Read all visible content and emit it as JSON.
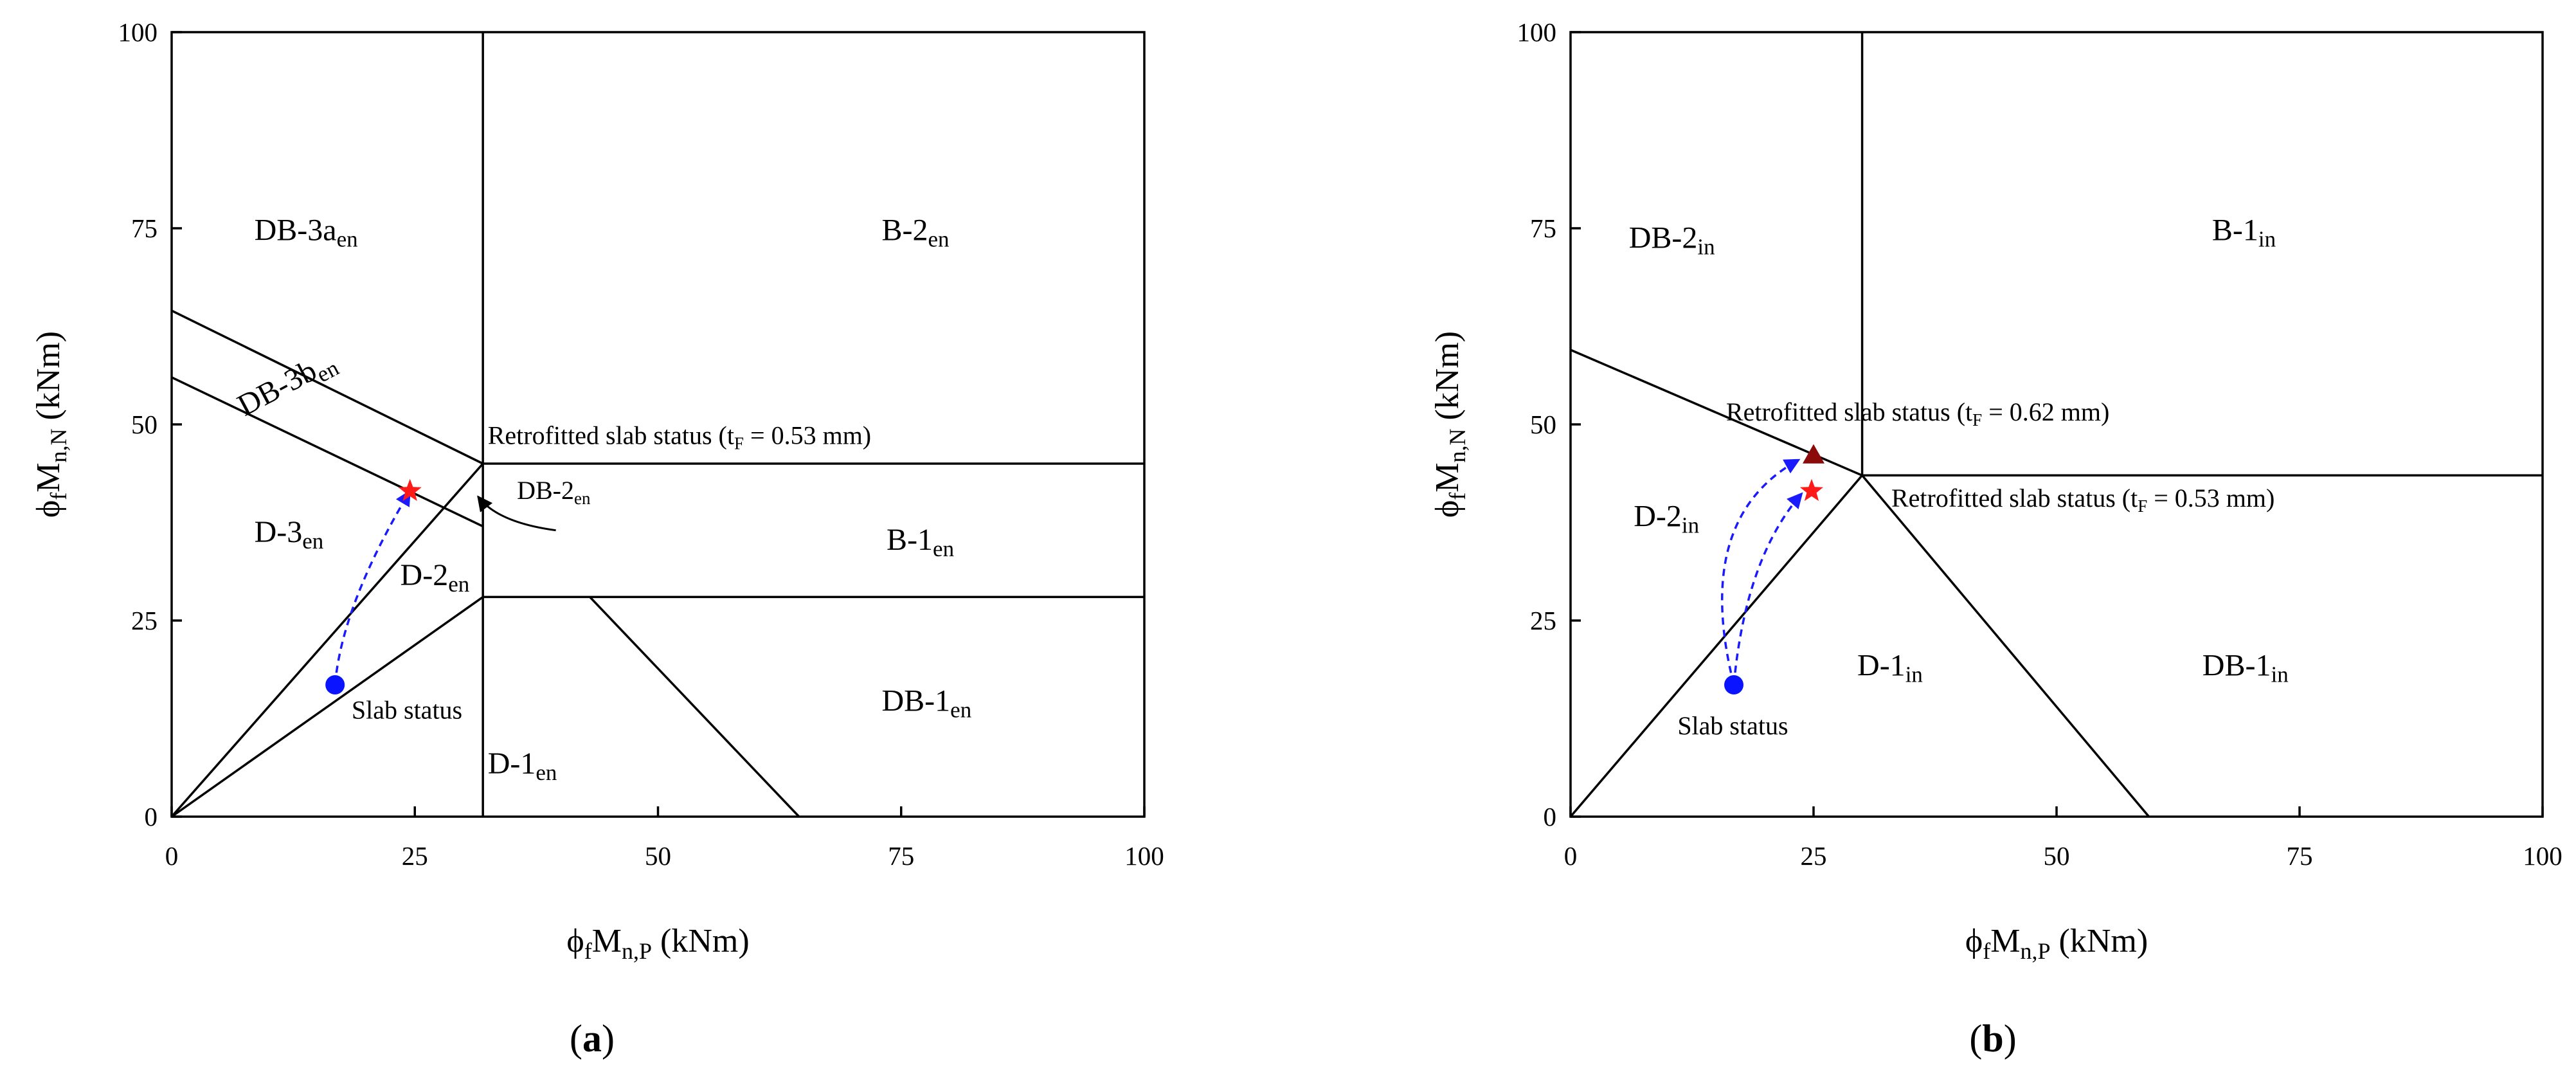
{
  "chart_data": [
    {
      "type": "scatter",
      "panel_label": "a",
      "xlim": [
        0,
        100
      ],
      "ylim": [
        0,
        100
      ],
      "xticks": [
        0,
        25,
        50,
        75,
        100
      ],
      "yticks": [
        0,
        25,
        50,
        75,
        100
      ],
      "xlabel": {
        "pre": "ϕ",
        "s1": "f",
        "main": "M",
        "s2": "n,P",
        "post": " (kNm)"
      },
      "ylabel": {
        "pre": "ϕ",
        "s1": "f",
        "main": "M",
        "s2": "n,N",
        "post": " (kNm)"
      },
      "boundaries": [
        [
          [
            32,
            0
          ],
          [
            32,
            100
          ]
        ],
        [
          [
            0,
            64.5
          ],
          [
            32,
            45
          ]
        ],
        [
          [
            0,
            56
          ],
          [
            32,
            37
          ]
        ],
        [
          [
            32,
            45
          ],
          [
            100,
            45
          ]
        ],
        [
          [
            32,
            28
          ],
          [
            100,
            28
          ]
        ],
        [
          [
            0,
            0
          ],
          [
            32,
            45
          ]
        ],
        [
          [
            0,
            0
          ],
          [
            32,
            28
          ]
        ],
        [
          [
            43,
            28
          ],
          [
            64.5,
            0
          ]
        ]
      ],
      "regions": [
        {
          "main": "DB-3a",
          "sub": "en",
          "x": 8.5,
          "y": 73.5,
          "angle": 0
        },
        {
          "main": "B-2",
          "sub": "en",
          "x": 73,
          "y": 73.5,
          "angle": 0
        },
        {
          "main": "DB-3b",
          "sub": "en",
          "x": 7.5,
          "y": 51,
          "angle": -28
        },
        {
          "main": "D-3",
          "sub": "en",
          "x": 8.5,
          "y": 35,
          "angle": 0
        },
        {
          "main": "D-2",
          "sub": "en",
          "x": 23.5,
          "y": 29.5,
          "angle": 0
        },
        {
          "main": "B-1",
          "sub": "en",
          "x": 73.5,
          "y": 34,
          "angle": 0
        },
        {
          "main": "DB-1",
          "sub": "en",
          "x": 73,
          "y": 13.5,
          "angle": 0
        },
        {
          "main": "D-1",
          "sub": "en",
          "x": 32.5,
          "y": 5.5,
          "angle": 0
        }
      ],
      "annotations": [
        {
          "pre": "Retrofitted slab status (t",
          "sub": "F",
          "post": " = 0.53 mm)",
          "x": 32.5,
          "y": 47.5
        },
        {
          "pre": "DB-2",
          "sub": "en",
          "post": "",
          "x": 35.5,
          "y": 40.5
        },
        {
          "pre": "Slab status",
          "sub": "",
          "post": "",
          "x": 18.5,
          "y": 12.5
        }
      ],
      "points": [
        {
          "marker": "circle",
          "color": "#0a14ff",
          "x": 16.8,
          "y": 16.8
        },
        {
          "marker": "star",
          "color": "#ff1a1a",
          "x": 24.5,
          "y": 41.5
        }
      ],
      "paths": [
        {
          "from": [
            16.8,
            16.8
          ],
          "to": [
            24.5,
            41.5
          ],
          "control": [
            17.5,
            27
          ]
        }
      ],
      "pointer": {
        "start": [
          39.5,
          36.5
        ],
        "control": [
          33.5,
          37.5
        ],
        "end": [
          31.5,
          40.8
        ]
      }
    },
    {
      "type": "scatter",
      "panel_label": "b",
      "xlim": [
        0,
        100
      ],
      "ylim": [
        0,
        100
      ],
      "xticks": [
        0,
        25,
        50,
        75,
        100
      ],
      "yticks": [
        0,
        25,
        50,
        75,
        100
      ],
      "xlabel": {
        "pre": "ϕ",
        "s1": "f",
        "main": "M",
        "s2": "n,P",
        "post": " (kNm)"
      },
      "ylabel": {
        "pre": "ϕ",
        "s1": "f",
        "main": "M",
        "s2": "n,N",
        "post": " (kNm)"
      },
      "boundaries": [
        [
          [
            30,
            43.5
          ],
          [
            30,
            100
          ]
        ],
        [
          [
            0,
            59.5
          ],
          [
            30,
            43.5
          ]
        ],
        [
          [
            30,
            43.5
          ],
          [
            100,
            43.5
          ]
        ],
        [
          [
            0,
            0
          ],
          [
            30,
            43.5
          ]
        ],
        [
          [
            30,
            43.5
          ],
          [
            59.5,
            0
          ]
        ]
      ],
      "regions": [
        {
          "main": "DB-2",
          "sub": "in",
          "x": 6,
          "y": 72.5,
          "angle": 0
        },
        {
          "main": "B-1",
          "sub": "in",
          "x": 66,
          "y": 73.5,
          "angle": 0
        },
        {
          "main": "D-2",
          "sub": "in",
          "x": 6.5,
          "y": 37,
          "angle": 0
        },
        {
          "main": "D-1",
          "sub": "in",
          "x": 29.5,
          "y": 18,
          "angle": 0
        },
        {
          "main": "DB-1",
          "sub": "in",
          "x": 65,
          "y": 18,
          "angle": 0
        }
      ],
      "annotations": [
        {
          "pre": "Retrofitted slab status (t",
          "sub": "F",
          "post": " = 0.62 mm)",
          "x": 16,
          "y": 50.5
        },
        {
          "pre": "Retrofitted slab status (t",
          "sub": "F",
          "post": " = 0.53 mm)",
          "x": 33,
          "y": 39.5
        },
        {
          "pre": "Slab status",
          "sub": "",
          "post": "",
          "x": 11,
          "y": 10.5
        }
      ],
      "points": [
        {
          "marker": "circle",
          "color": "#0a14ff",
          "x": 16.8,
          "y": 16.8
        },
        {
          "marker": "triangle",
          "color": "#8b0a0a",
          "x": 25,
          "y": 46
        },
        {
          "marker": "star",
          "color": "#ff1a1a",
          "x": 24.8,
          "y": 41.5
        }
      ],
      "paths": [
        {
          "from": [
            16.8,
            16.8
          ],
          "to": [
            23.5,
            45.5
          ],
          "control": [
            12.5,
            38
          ]
        },
        {
          "from": [
            16.8,
            16.8
          ],
          "to": [
            23.8,
            41.2
          ],
          "control": [
            18,
            33
          ]
        }
      ],
      "pointer": null
    }
  ]
}
